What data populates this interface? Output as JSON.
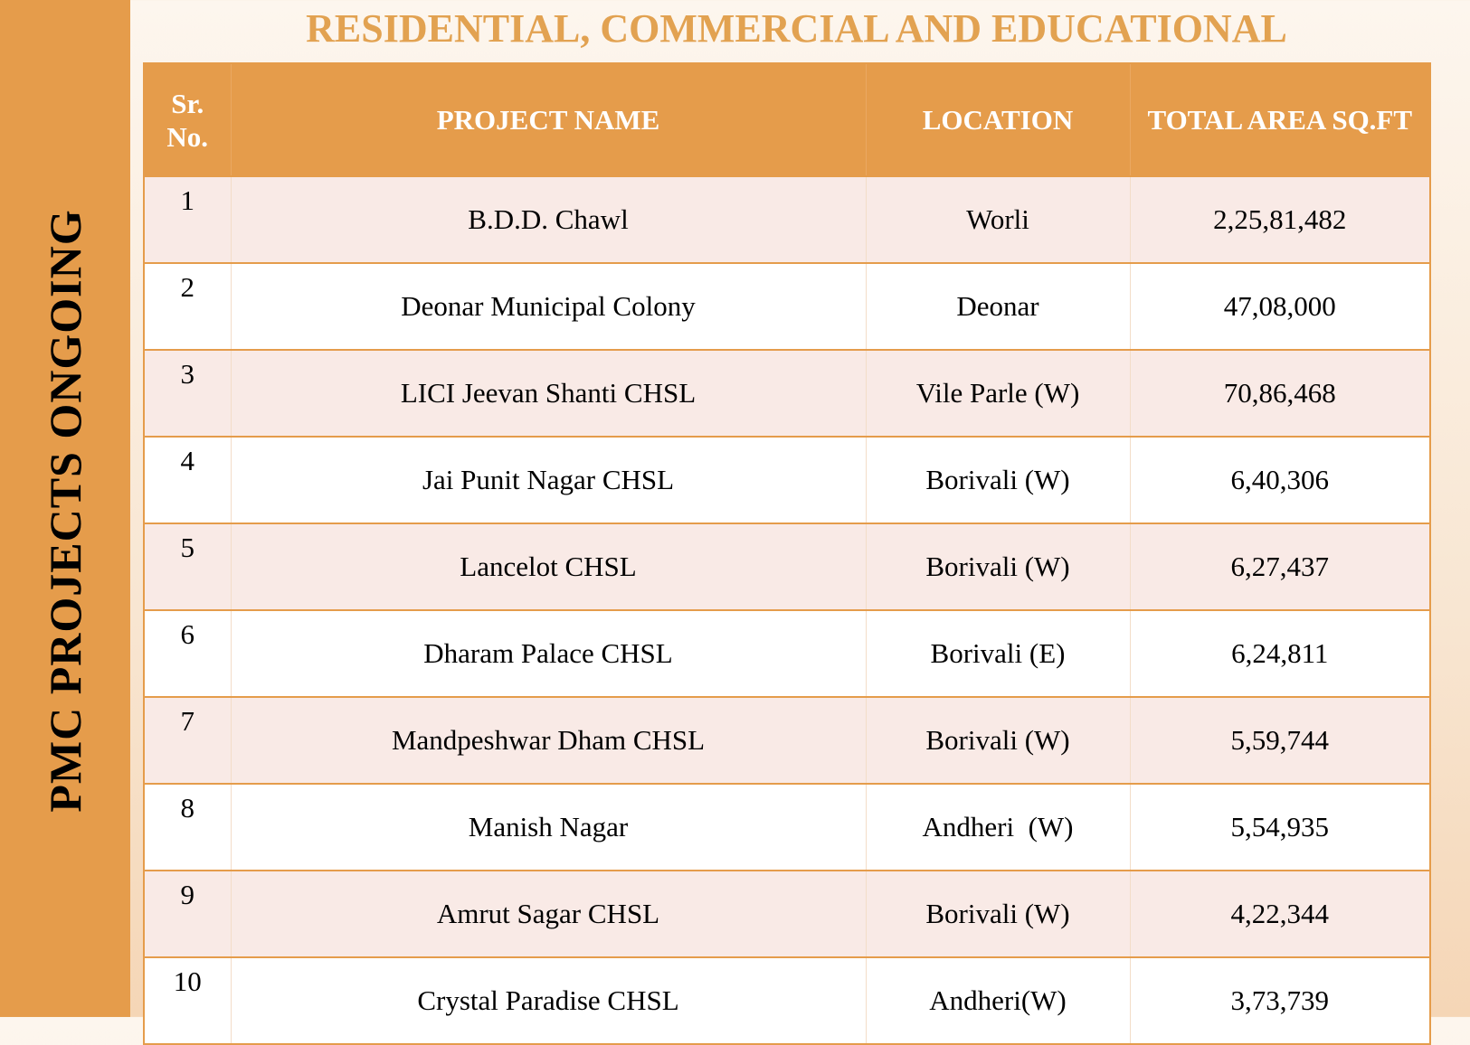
{
  "side_title": "PMC PROJECTS ONGOING",
  "header": {
    "title": "RESIDENTIAL, COMMERCIAL AND EDUCATIONAL"
  },
  "table": {
    "columns": [
      "Sr. No.",
      "PROJECT NAME",
      "LOCATION",
      "TOTAL AREA SQ.FT"
    ],
    "rows": [
      [
        "1",
        "B.D.D. Chawl",
        "Worli",
        "2,25,81,482"
      ],
      [
        "2",
        "Deonar Municipal Colony",
        "Deonar",
        "47,08,000"
      ],
      [
        "3",
        "LICI Jeevan Shanti CHSL",
        "Vile Parle (W)",
        "70,86,468"
      ],
      [
        "4",
        "Jai Punit Nagar CHSL",
        "Borivali (W)",
        "6,40,306"
      ],
      [
        "5",
        "Lancelot CHSL",
        "Borivali (W)",
        "6,27,437"
      ],
      [
        "6",
        "Dharam Palace CHSL",
        "Borivali (E)",
        "6,24,811"
      ],
      [
        "7",
        "Mandpeshwar Dham CHSL",
        "Borivali (W)",
        "5,59,744"
      ],
      [
        "8",
        "Manish Nagar",
        "Andheri  (W)",
        "5,54,935"
      ],
      [
        "9",
        "Amrut Sagar CHSL",
        "Borivali (W)",
        "4,22,344"
      ],
      [
        "10",
        "Crystal Paradise CHSL",
        "Andheri(W)",
        "3,73,739"
      ]
    ]
  }
}
